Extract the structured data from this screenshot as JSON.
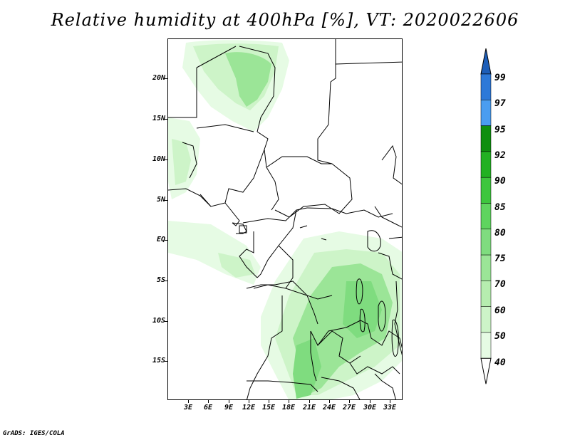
{
  "title": "Relative humidity at 400hPa [%], VT: 2020022606",
  "credit": "GrADS: IGES/COLA",
  "lat_labels": [
    "20N",
    "15N",
    "10N",
    "5N",
    "EQ",
    "5S",
    "10S",
    "15S"
  ],
  "lon_labels": [
    "3E",
    "6E",
    "9E",
    "12E",
    "15E",
    "18E",
    "21E",
    "24E",
    "27E",
    "30E",
    "33E"
  ],
  "colorbar": {
    "labels": [
      "40",
      "50",
      "60",
      "70",
      "75",
      "80",
      "85",
      "90",
      "92",
      "95",
      "97",
      "99"
    ],
    "colors": [
      "#ffffff",
      "#e6fbe4",
      "#cdf4c8",
      "#b6edaf",
      "#9be597",
      "#7fdc7f",
      "#5fd45f",
      "#3ec63e",
      "#22b122",
      "#0f8f0f",
      "#4a9df0",
      "#2d79d8",
      "#1d5eb8"
    ]
  },
  "map": {
    "background": "#ffffff",
    "border_color": "#000000",
    "humidity_shades": {
      "lightest": "#e6fbe4",
      "light": "#cdf4c8",
      "medium": "#9be597",
      "strong": "#7fdc7f"
    }
  }
}
